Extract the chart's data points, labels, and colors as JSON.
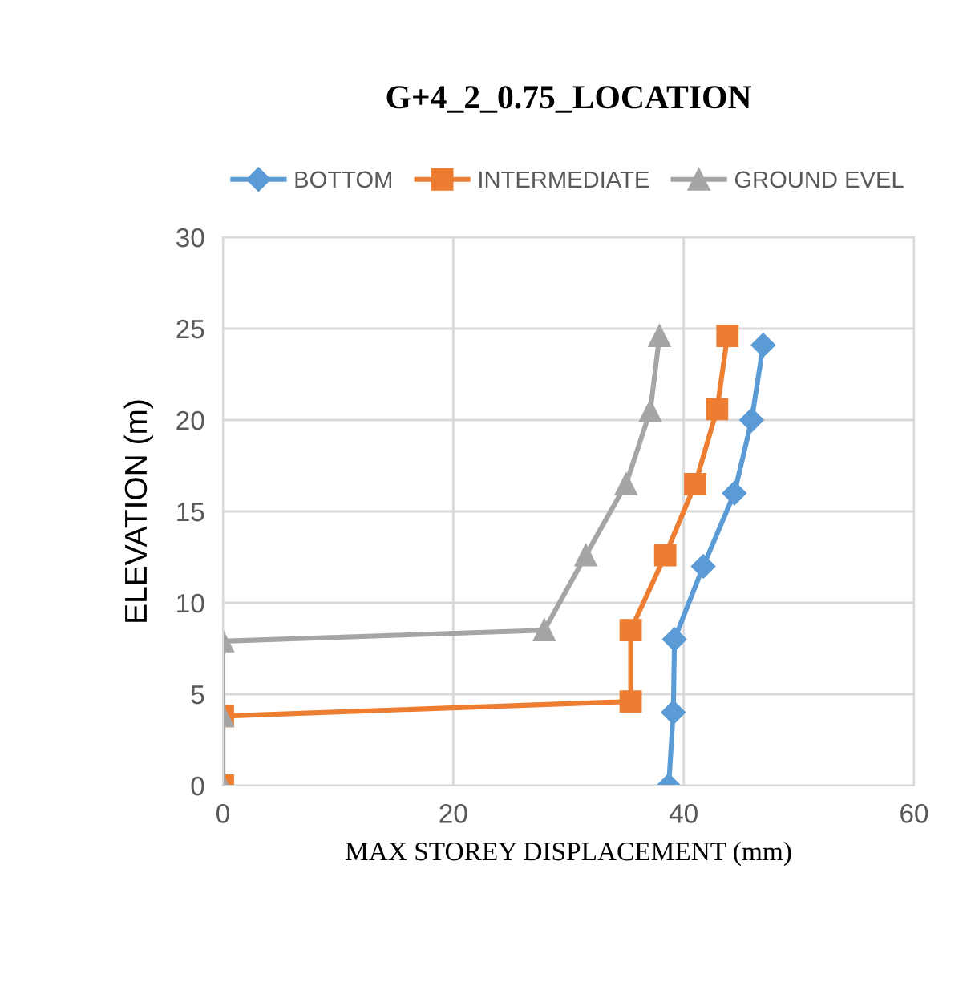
{
  "chart_data": {
    "type": "line",
    "title": "G+4_2_0.75_LOCATION",
    "xlabel": "MAX STOREY DISPLACEMENT (mm)",
    "ylabel": "ELEVATION (m)",
    "xlim": [
      0,
      60
    ],
    "xticks": [
      0,
      20,
      40,
      60
    ],
    "ylim": [
      0,
      30
    ],
    "yticks": [
      0,
      5,
      10,
      15,
      20,
      25,
      30
    ],
    "grid": true,
    "legend": "top",
    "line_style": "solid",
    "series": [
      {
        "name": "BOTTOM",
        "color": "#5b9bd5",
        "marker": "diamond",
        "x": [
          38.7,
          39.1,
          39.2,
          41.7,
          44.4,
          45.9,
          46.9
        ],
        "values": [
          0,
          4.0,
          8.0,
          12.0,
          16.0,
          20.0,
          24.1
        ]
      },
      {
        "name": "INTERMEDIATE",
        "color": "#ed7d31",
        "marker": "square",
        "x": [
          0,
          0,
          35.4,
          35.4,
          38.4,
          41.0,
          42.9,
          43.8
        ],
        "values": [
          0,
          3.8,
          4.6,
          8.5,
          12.6,
          16.5,
          20.6,
          24.6
        ]
      },
      {
        "name": "GROUND EVEL",
        "color": "#a5a5a5",
        "marker": "triangle",
        "x": [
          0,
          0,
          0,
          27.9,
          31.5,
          35.0,
          37.1,
          37.9
        ],
        "values": [
          0,
          3.8,
          7.9,
          8.5,
          12.6,
          16.5,
          20.5,
          24.6
        ]
      }
    ]
  }
}
